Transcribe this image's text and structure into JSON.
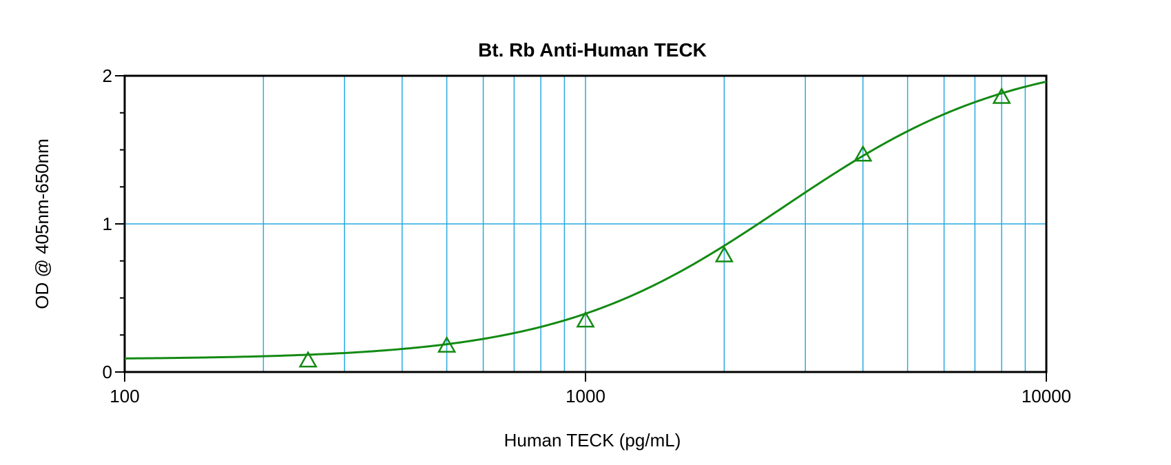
{
  "chart_data": {
    "type": "line",
    "title": "Bt. Rb Anti-Human TECK",
    "xlabel": "Human TECK (pg/mL)",
    "ylabel": "OD @ 405nm-650nm",
    "x_scale": "log",
    "xlim": [
      100,
      10000
    ],
    "ylim": [
      0,
      2
    ],
    "x_ticks": [
      "100",
      "1000",
      "10000"
    ],
    "y_ticks": [
      "0",
      "1",
      "2"
    ],
    "grid": true,
    "series": [
      {
        "marker": "triangle",
        "color": "#138a13",
        "x": [
          250,
          500,
          1000,
          2000,
          4000,
          8000
        ],
        "y": [
          0.08,
          0.18,
          0.35,
          0.79,
          1.47,
          1.86
        ]
      }
    ],
    "fit_curve": {
      "type": "4PL",
      "color": "#138a13",
      "bottom": 0.085,
      "top": 2.15,
      "ec50": 2700,
      "hill": 1.75,
      "x_range": [
        100,
        10000
      ]
    }
  }
}
